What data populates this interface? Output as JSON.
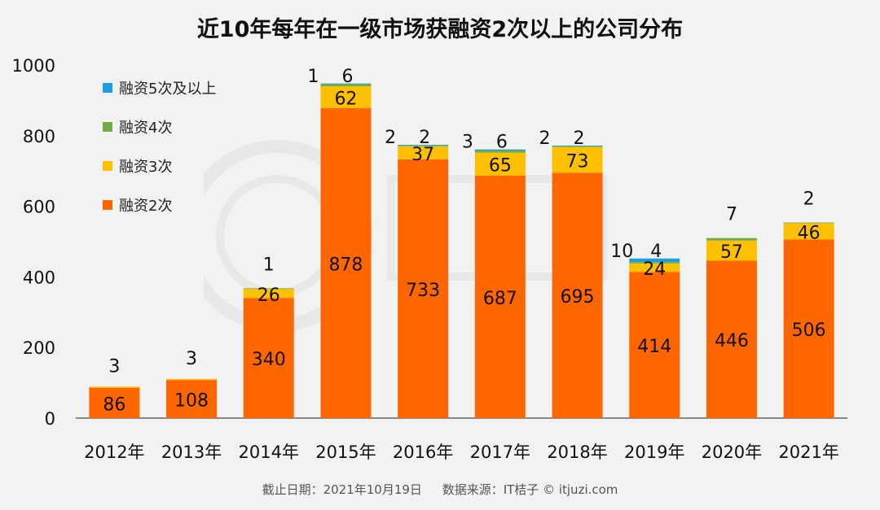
{
  "title": "近10年每年在一级市场获融资2次以上的公司分布",
  "footer": {
    "cutoff": "截止日期：2021年10月19日",
    "source": "数据来源：IT桔子 © itjuzi.com"
  },
  "colors": {
    "s2": "#ff6600",
    "s3": "#ffc000",
    "s4": "#70ad47",
    "s5": "#1f9ede",
    "axis": "#222222",
    "grid": "#d9d9d9"
  },
  "chart_data": {
    "type": "bar",
    "stacked": true,
    "title": "近10年每年在一级市场获融资2次以上的公司分布",
    "xlabel": "",
    "ylabel": "",
    "ylim": [
      0,
      1000
    ],
    "yticks": [
      "0",
      "200",
      "400",
      "600",
      "800",
      "1000"
    ],
    "categories": [
      "2012年",
      "2013年",
      "2014年",
      "2015年",
      "2016年",
      "2017年",
      "2018年",
      "2019年",
      "2020年",
      "2021年"
    ],
    "legend_position": "top-left",
    "series": [
      {
        "name": "融资2次",
        "key": "s2",
        "values": [
          86,
          108,
          340,
          878,
          733,
          687,
          695,
          414,
          446,
          506
        ],
        "labels": [
          "86",
          "108",
          "340",
          "878",
          "733",
          "687",
          "695",
          "414",
          "446",
          "506"
        ]
      },
      {
        "name": "融资3次",
        "key": "s3",
        "values": [
          3,
          3,
          26,
          62,
          37,
          65,
          73,
          24,
          57,
          46
        ],
        "labels": [
          "3",
          "3",
          "26",
          "62",
          "37",
          "65",
          "73",
          "24",
          "57",
          "46"
        ]
      },
      {
        "name": "融资4次",
        "key": "s4",
        "values": [
          0,
          0,
          1,
          6,
          2,
          6,
          2,
          4,
          7,
          2
        ],
        "labels": [
          "",
          "",
          "1",
          "6",
          "2",
          "6",
          "2",
          "4",
          "7",
          "2"
        ]
      },
      {
        "name": "融资5次及以上",
        "key": "s5",
        "values": [
          0,
          0,
          0,
          1,
          2,
          3,
          2,
          10,
          0,
          0
        ],
        "labels": [
          "",
          "",
          "",
          "1",
          "2",
          "3",
          "2",
          "10",
          "",
          ""
        ]
      }
    ]
  }
}
